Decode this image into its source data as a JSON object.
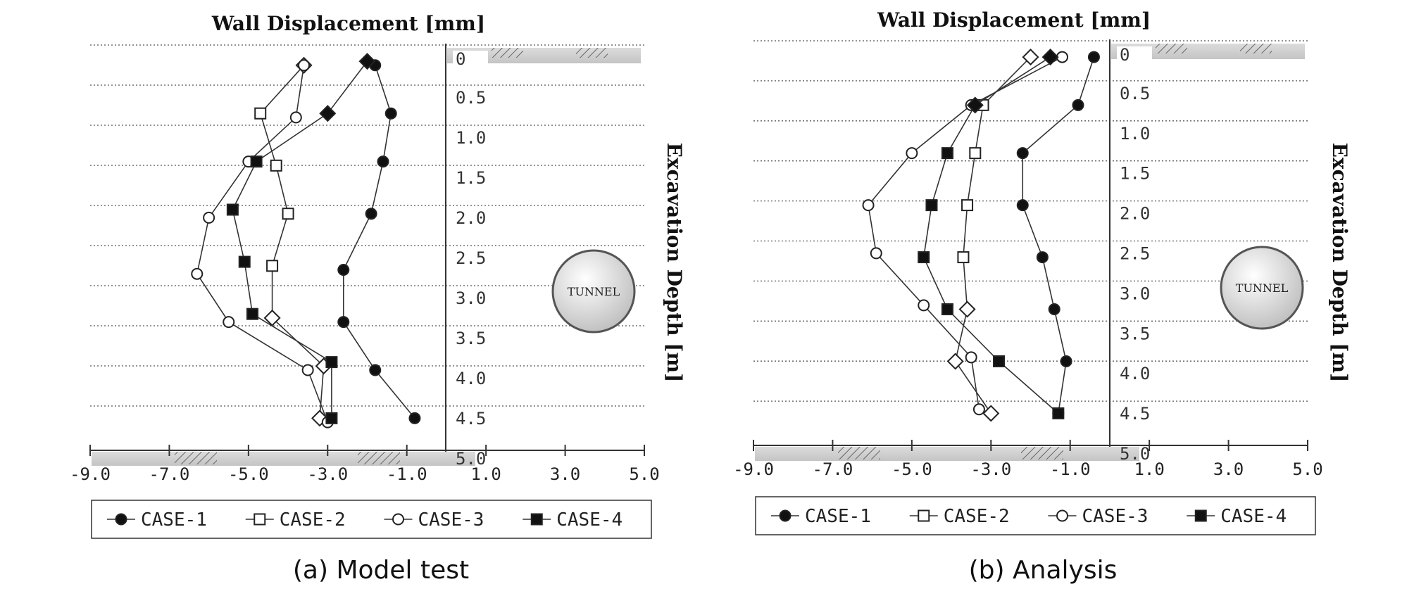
{
  "chart_data": [
    {
      "type": "line",
      "caption": "(a) Model test",
      "title": "Wall Displacement [mm]",
      "ylabel": "Excavation Depth [m]",
      "xlim": [
        -9.0,
        5.0
      ],
      "ylim": [
        5.0,
        0
      ],
      "x_ticks": [
        "-9.0",
        "-7.0",
        "-5.0",
        "-3.0",
        "-1.0",
        "1.0",
        "3.0",
        "5.0"
      ],
      "y_ticks": [
        "0",
        "0.5",
        "1.0",
        "1.5",
        "2.0",
        "2.5",
        "3.0",
        "3.5",
        "4.0",
        "4.5",
        "5.0"
      ],
      "grid": true,
      "annotation": "TUNNEL",
      "legend": "bottom",
      "series": [
        {
          "name": "CASE-1",
          "marker": "filled-circle",
          "x": [
            -1.8,
            -1.4,
            -1.6,
            -1.9,
            -2.6,
            -2.6,
            -1.8,
            -0.8
          ],
          "y": [
            0.2,
            0.8,
            1.4,
            2.05,
            2.75,
            3.4,
            4.0,
            4.6
          ]
        },
        {
          "name": "CASE-2",
          "marker": "open-square",
          "x": [
            -3.6,
            -4.7,
            -4.3,
            -4.0,
            -4.4,
            -4.4,
            -3.1,
            -3.2
          ],
          "y": [
            0.2,
            0.8,
            1.45,
            2.05,
            2.7,
            3.35,
            3.95,
            4.6
          ]
        },
        {
          "name": "CASE-3",
          "marker": "open-circle",
          "x": [
            -3.6,
            -3.8,
            -5.0,
            -6.0,
            -6.3,
            -5.5,
            -3.5,
            -3.0
          ],
          "y": [
            0.2,
            0.85,
            1.4,
            2.1,
            2.8,
            3.4,
            4.0,
            4.65
          ]
        },
        {
          "name": "CASE-4",
          "marker": "filled-square",
          "x": [
            -2.0,
            -3.0,
            -4.8,
            -5.4,
            -5.1,
            -4.9,
            -2.9,
            -2.9
          ],
          "y": [
            0.15,
            0.8,
            1.4,
            2.0,
            2.65,
            3.3,
            3.9,
            4.6
          ]
        }
      ]
    },
    {
      "type": "line",
      "caption": "(b) Analysis",
      "title": "Wall Displacement [mm]",
      "ylabel": "Excavation Depth [m]",
      "xlim": [
        -9.0,
        5.0
      ],
      "ylim": [
        5.0,
        0
      ],
      "x_ticks": [
        "-9.0",
        "-7.0",
        "-5.0",
        "-3.0",
        "-1.0",
        "1.0",
        "3.0",
        "5.0"
      ],
      "y_ticks": [
        "0",
        "0.5",
        "1.0",
        "1.5",
        "2.0",
        "2.5",
        "3.0",
        "3.5",
        "4.0",
        "4.5",
        "5.0"
      ],
      "grid": true,
      "annotation": "TUNNEL",
      "legend": "bottom",
      "series": [
        {
          "name": "CASE-1",
          "marker": "filled-circle",
          "x": [
            -0.4,
            -0.8,
            -2.2,
            -2.2,
            -1.7,
            -1.4,
            -1.1,
            -1.3
          ],
          "y": [
            0.15,
            0.75,
            1.35,
            2.0,
            2.65,
            3.3,
            3.95,
            4.6
          ]
        },
        {
          "name": "CASE-2",
          "marker": "open-square",
          "x": [
            -2.0,
            -3.2,
            -3.4,
            -3.6,
            -3.7,
            -3.6,
            -3.9,
            -3.0
          ],
          "y": [
            0.15,
            0.75,
            1.35,
            2.0,
            2.65,
            3.3,
            3.95,
            4.6
          ]
        },
        {
          "name": "CASE-3",
          "marker": "open-circle",
          "x": [
            -1.2,
            -3.5,
            -5.0,
            -6.1,
            -5.9,
            -4.7,
            -3.5,
            -3.3
          ],
          "y": [
            0.15,
            0.75,
            1.35,
            2.0,
            2.6,
            3.25,
            3.9,
            4.55
          ]
        },
        {
          "name": "CASE-4",
          "marker": "filled-square",
          "x": [
            -1.5,
            -3.4,
            -4.1,
            -4.5,
            -4.7,
            -4.1,
            -2.8,
            -1.3
          ],
          "y": [
            0.15,
            0.75,
            1.35,
            2.0,
            2.65,
            3.3,
            3.95,
            4.6
          ]
        }
      ]
    }
  ]
}
